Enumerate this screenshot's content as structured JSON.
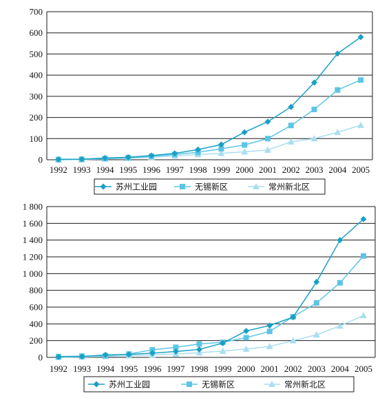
{
  "chart_data": [
    {
      "type": "line",
      "x": [
        "1992",
        "1993",
        "1994",
        "1995",
        "1996",
        "1997",
        "1998",
        "1999",
        "2000",
        "2001",
        "2002",
        "2003",
        "2004",
        "2005"
      ],
      "ylim": [
        0,
        700
      ],
      "yticks": [
        0,
        100,
        200,
        300,
        400,
        500,
        600,
        700
      ],
      "ytick_labels": [
        "0",
        "100",
        "200",
        "300",
        "400",
        "500",
        "600",
        "700"
      ],
      "grid": "horizontal",
      "legend": "bottom",
      "series": [
        {
          "name": "苏州工业园",
          "marker": "diamond",
          "color": "#1aa0c4",
          "values": [
            2,
            3,
            8,
            12,
            20,
            30,
            48,
            72,
            130,
            180,
            250,
            365,
            502,
            580
          ]
        },
        {
          "name": "无锡新区",
          "marker": "square",
          "color": "#5cc5e6",
          "values": [
            1,
            2,
            6,
            10,
            16,
            25,
            35,
            52,
            70,
            100,
            162,
            238,
            330,
            377
          ]
        },
        {
          "name": "常州新北区",
          "marker": "triangle",
          "color": "#a9def0",
          "values": [
            0,
            1,
            4,
            7,
            12,
            18,
            25,
            30,
            38,
            46,
            85,
            100,
            130,
            163
          ]
        }
      ]
    },
    {
      "type": "line",
      "x": [
        "1992",
        "1993",
        "1994",
        "1995",
        "1996",
        "1997",
        "1998",
        "1999",
        "2000",
        "2001",
        "2002",
        "2003",
        "2004",
        "2005"
      ],
      "ylim": [
        0,
        1800
      ],
      "yticks": [
        0,
        200,
        400,
        600,
        800,
        1000,
        1200,
        1400,
        1600,
        1800
      ],
      "ytick_labels": [
        "0",
        "200",
        "400",
        "600",
        "800",
        "1 000",
        "1 200",
        "1 400",
        "1 600",
        "1 800"
      ],
      "grid": "horizontal",
      "legend": "bottom",
      "series": [
        {
          "name": "苏州工业园",
          "marker": "diamond",
          "color": "#1aa0c4",
          "values": [
            5,
            10,
            30,
            35,
            50,
            70,
            95,
            170,
            315,
            380,
            480,
            900,
            1400,
            1650
          ]
        },
        {
          "name": "无锡新区",
          "marker": "square",
          "color": "#5cc5e6",
          "values": [
            10,
            15,
            20,
            40,
            90,
            120,
            160,
            180,
            235,
            310,
            485,
            650,
            890,
            1210
          ]
        },
        {
          "name": "常州新北区",
          "marker": "triangle",
          "color": "#a9def0",
          "values": [
            0,
            5,
            10,
            20,
            30,
            40,
            55,
            75,
            100,
            130,
            200,
            270,
            375,
            500
          ]
        }
      ]
    }
  ]
}
